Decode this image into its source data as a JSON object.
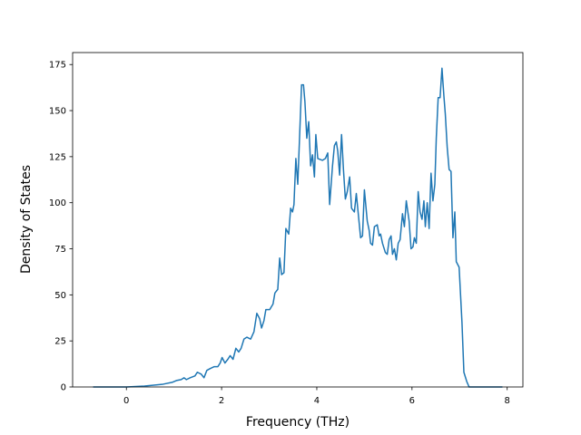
{
  "chart_data": {
    "type": "line",
    "xlabel": "Frequency (THz)",
    "ylabel": "Density of States",
    "xlim": [
      -1.13,
      8.33
    ],
    "ylim": [
      0,
      181.5
    ],
    "xticks": [
      0,
      2,
      4,
      6,
      8
    ],
    "yticks": [
      0,
      25,
      50,
      75,
      100,
      125,
      150,
      175
    ],
    "grid": false,
    "series": [
      {
        "color": "#1f77b4",
        "x": [
          -0.7,
          0,
          0.38,
          0.77,
          0.96,
          1.05,
          1.15,
          1.21,
          1.26,
          1.34,
          1.44,
          1.49,
          1.57,
          1.63,
          1.69,
          1.76,
          1.84,
          1.92,
          1.97,
          2.01,
          2.07,
          2.13,
          2.18,
          2.24,
          2.3,
          2.36,
          2.41,
          2.47,
          2.53,
          2.61,
          2.68,
          2.74,
          2.8,
          2.84,
          2.89,
          2.93,
          3.01,
          3.08,
          3.12,
          3.18,
          3.22,
          3.26,
          3.31,
          3.35,
          3.41,
          3.45,
          3.49,
          3.52,
          3.56,
          3.6,
          3.64,
          3.68,
          3.72,
          3.75,
          3.79,
          3.83,
          3.87,
          3.91,
          3.95,
          3.98,
          4.02,
          4.12,
          4.18,
          4.23,
          4.27,
          4.33,
          4.37,
          4.41,
          4.44,
          4.48,
          4.52,
          4.56,
          4.6,
          4.64,
          4.69,
          4.73,
          4.79,
          4.83,
          4.89,
          4.92,
          4.96,
          5.0,
          5.06,
          5.1,
          5.13,
          5.17,
          5.21,
          5.27,
          5.31,
          5.34,
          5.38,
          5.44,
          5.48,
          5.52,
          5.56,
          5.59,
          5.63,
          5.67,
          5.71,
          5.75,
          5.8,
          5.84,
          5.88,
          5.94,
          5.98,
          6.02,
          6.05,
          6.09,
          6.13,
          6.17,
          6.21,
          6.25,
          6.28,
          6.32,
          6.36,
          6.4,
          6.44,
          6.48,
          6.51,
          6.55,
          6.59,
          6.63,
          6.67,
          6.7,
          6.74,
          6.78,
          6.82,
          6.86,
          6.9,
          6.93,
          6.99,
          7.05,
          7.09,
          7.15,
          7.2,
          7.9
        ],
        "values": [
          0,
          0,
          0.5,
          1.5,
          2.5,
          3.5,
          4,
          5,
          4,
          5,
          6,
          8,
          7,
          5,
          9,
          10,
          11,
          11,
          13,
          16,
          13,
          15,
          17,
          15,
          21,
          19,
          21,
          26,
          27,
          26,
          30,
          40,
          37,
          32,
          36,
          42,
          42,
          45,
          51,
          53,
          70,
          61,
          62,
          86,
          83,
          97,
          95,
          99,
          124,
          110,
          137,
          164,
          164,
          155,
          135,
          144,
          120,
          126,
          114,
          137,
          124,
          123,
          124,
          127,
          99,
          120,
          131,
          133,
          128,
          115,
          137,
          118,
          102,
          106,
          114,
          97,
          95,
          105,
          89,
          81,
          82,
          107,
          90,
          85,
          78,
          77,
          87,
          88,
          82,
          83,
          78,
          73,
          72,
          80,
          82,
          72,
          75,
          69,
          78,
          80,
          94,
          87,
          101,
          90,
          75,
          76,
          81,
          78,
          106,
          95,
          91,
          101,
          87,
          100,
          86,
          116,
          101,
          110,
          135,
          157,
          157,
          173,
          158,
          148,
          130,
          118,
          117,
          81,
          95,
          68,
          65,
          35,
          8,
          3,
          0,
          0
        ]
      }
    ]
  }
}
